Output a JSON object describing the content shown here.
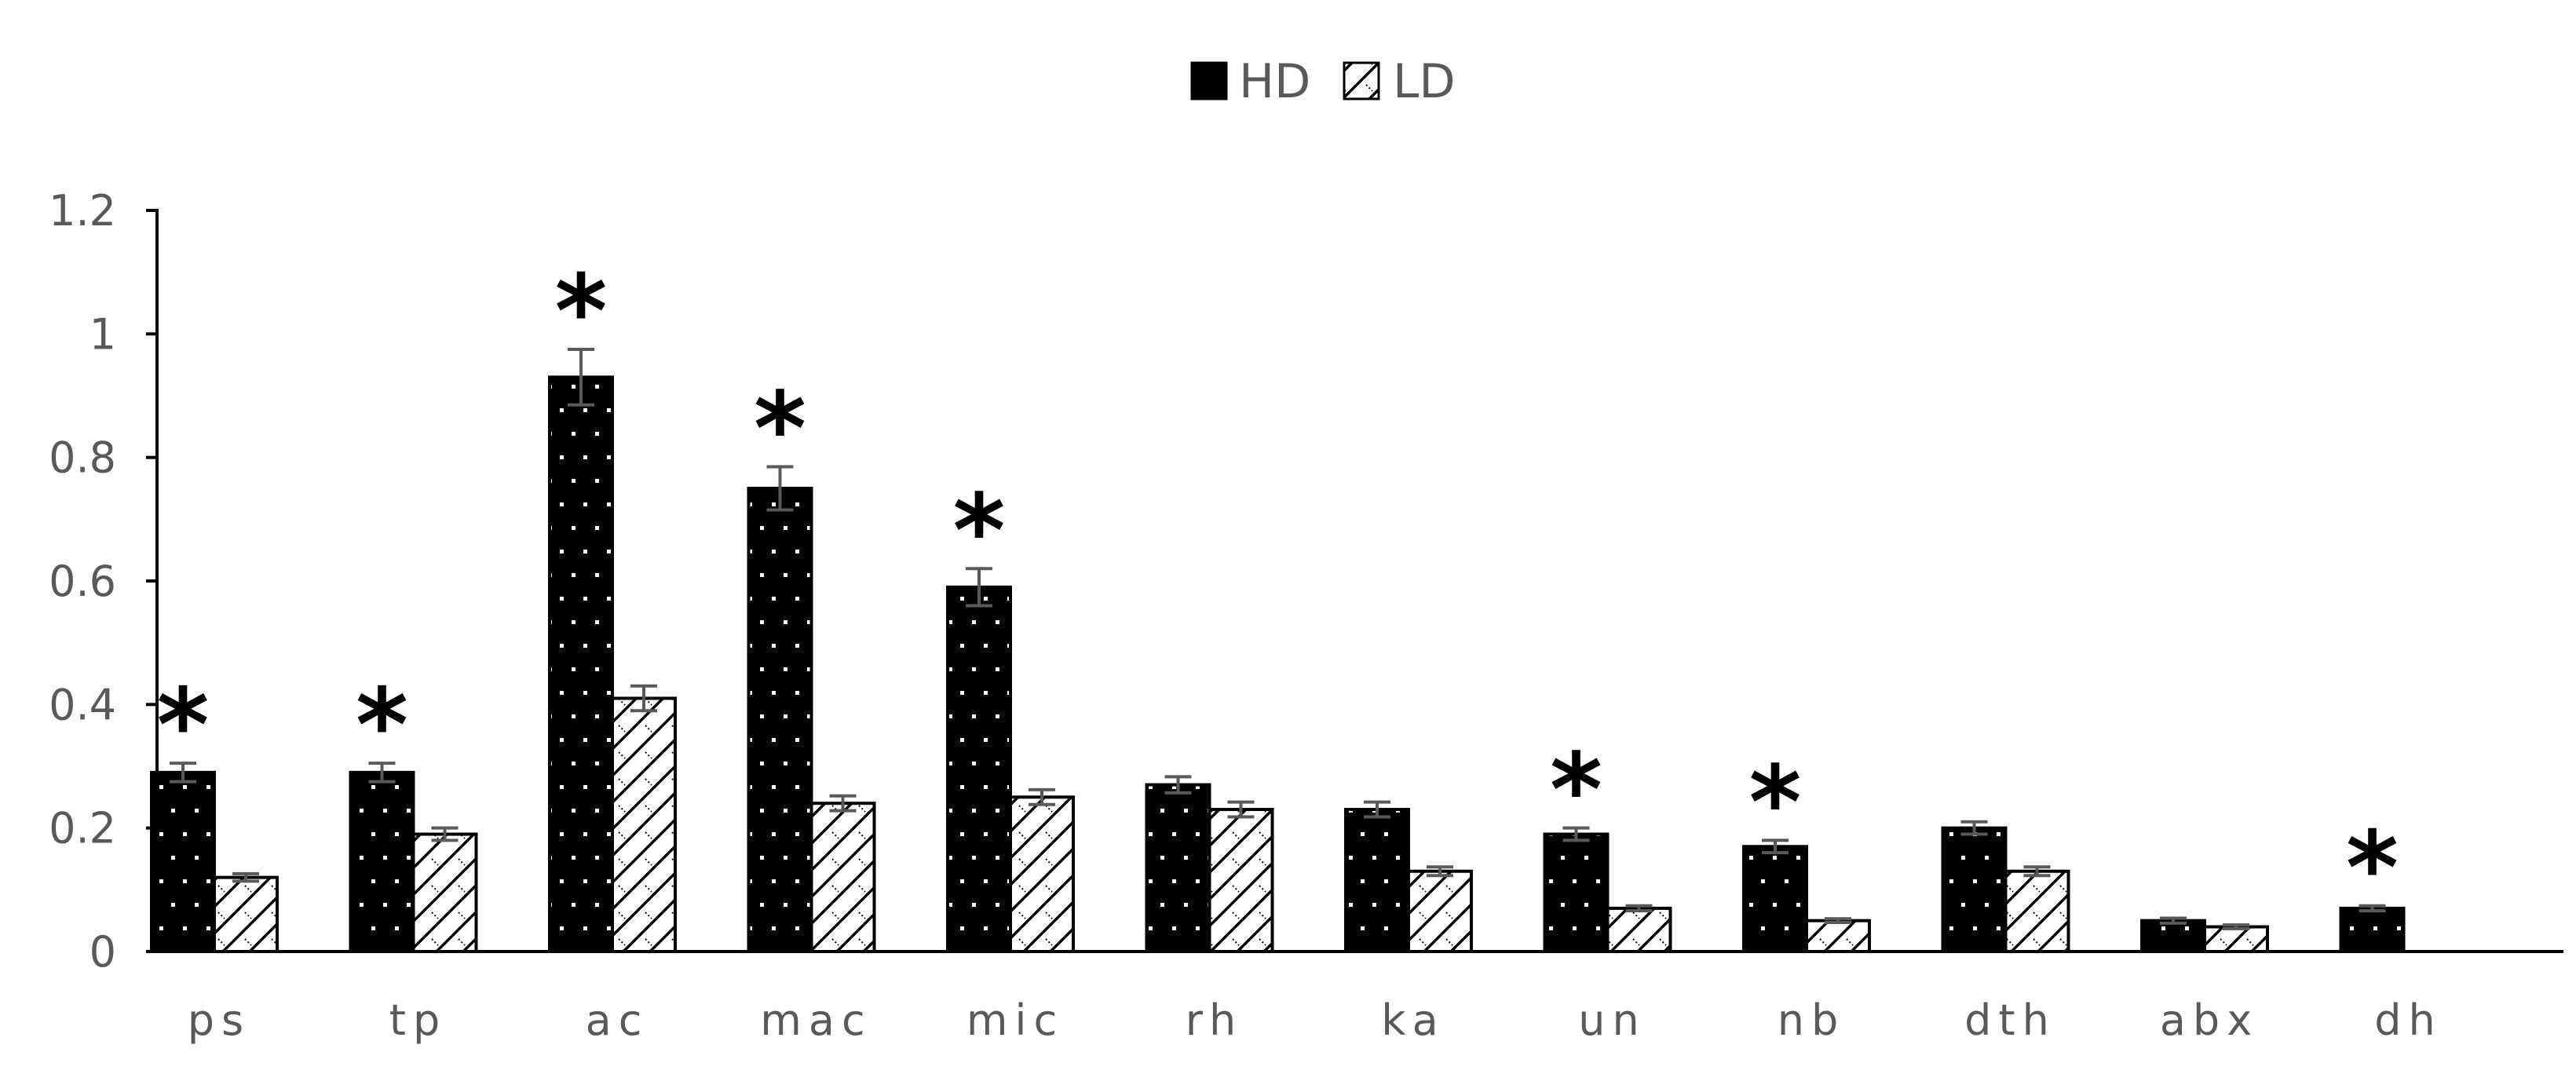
{
  "chart_data": {
    "type": "bar",
    "categories": [
      "ps",
      "tp",
      "ac",
      "mac",
      "mic",
      "rh",
      "ka",
      "un",
      "nb",
      "dth",
      "abx",
      "dh"
    ],
    "series": [
      {
        "name": "HD",
        "values": [
          0.29,
          0.29,
          0.93,
          0.75,
          0.59,
          0.27,
          0.23,
          0.19,
          0.17,
          0.2,
          0.05,
          0.07
        ],
        "errors": [
          0.015,
          0.015,
          0.045,
          0.035,
          0.03,
          0.013,
          0.012,
          0.01,
          0.01,
          0.01,
          0.004,
          0.004
        ],
        "significant": [
          true,
          true,
          true,
          true,
          true,
          false,
          false,
          true,
          true,
          false,
          false,
          true
        ],
        "pattern": "dots",
        "color": "#000000"
      },
      {
        "name": "LD",
        "values": [
          0.12,
          0.19,
          0.41,
          0.24,
          0.25,
          0.23,
          0.13,
          0.07,
          0.05,
          0.13,
          0.04,
          null
        ],
        "errors": [
          0.006,
          0.01,
          0.02,
          0.012,
          0.012,
          0.012,
          0.007,
          0.004,
          0.003,
          0.007,
          0.003,
          null
        ],
        "pattern": "diagonal-hatch",
        "color": "#ffffff"
      }
    ],
    "significance_marker": "*",
    "ylim": [
      0,
      1.2
    ],
    "yticks": [
      "0",
      "0.2",
      "0.4",
      "0.6",
      "0.8",
      "1",
      "1.2"
    ],
    "title": "",
    "xlabel": "",
    "ylabel": "",
    "legend_position": "top-center",
    "grid": false,
    "axis_color": "#000000",
    "label_color": "#595959",
    "errorbar_color": "#595959"
  }
}
